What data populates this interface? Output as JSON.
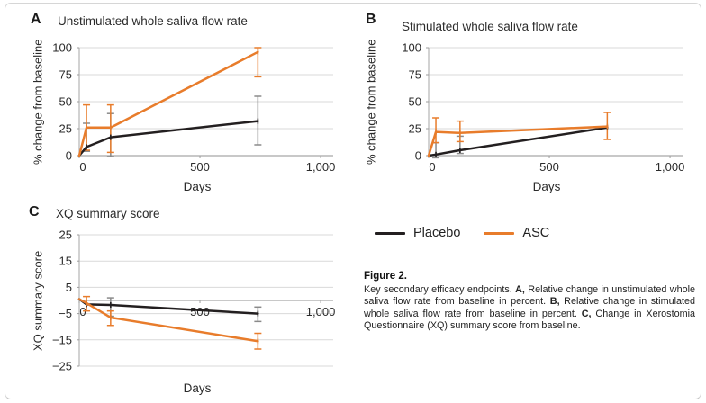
{
  "figure": {
    "legend": {
      "items": [
        {
          "label": "Placebo",
          "color": "#231f20"
        },
        {
          "label": "ASC",
          "color": "#e87c2b"
        }
      ]
    },
    "caption": {
      "title": "Figure 2.",
      "segments": [
        {
          "text": "Key secondary efficacy endpoints. ",
          "bold": false
        },
        {
          "text": "A,",
          "bold": true
        },
        {
          "text": " Relative change in unstimulated whole saliva flow rate from baseline in percent. ",
          "bold": false
        },
        {
          "text": "B,",
          "bold": true
        },
        {
          "text": " Relative change in stimulated whole saliva flow rate from baseline in percent. ",
          "bold": false
        },
        {
          "text": "C,",
          "bold": true
        },
        {
          "text": " Change in Xerostomia Questionnaire (XQ) summary score from baseline.",
          "bold": false
        }
      ]
    }
  },
  "panels": [
    {
      "letter": "A",
      "title": "Unstimulated whole saliva flow rate"
    },
    {
      "letter": "B",
      "title": "Stimulated whole saliva flow rate"
    },
    {
      "letter": "C",
      "title": "XQ summary score"
    }
  ],
  "colors": {
    "placebo": "#231f20",
    "asc": "#e87c2b",
    "placebo_error": "#8a8a8a",
    "gridline": "#d9d9d9",
    "axis": "#b3b3b3",
    "tick_text": "#2b2b2b"
  },
  "chart_data": [
    {
      "type": "line",
      "panel": "A",
      "title": "Unstimulated whole saliva flow rate",
      "xlabel": "Days",
      "ylabel": "% change from baseline",
      "xlim": [
        0,
        1052
      ],
      "ylim": [
        0,
        100
      ],
      "xticks": [
        0,
        500,
        1000
      ],
      "xtick_labels": [
        "0",
        "500",
        "1,000"
      ],
      "yticks": [
        0,
        25,
        50,
        75,
        100
      ],
      "ytick_labels": [
        "0",
        "25",
        "50",
        "75",
        "100"
      ],
      "grid": true,
      "series": [
        {
          "name": "Placebo",
          "color": "#231f20",
          "error_color": "#8a8a8a",
          "points": [
            {
              "x": 0,
              "y": 0
            },
            {
              "x": 30,
              "y": 8,
              "lo": 4,
              "hi": 30
            },
            {
              "x": 130,
              "y": 17,
              "lo": -1,
              "hi": 39
            },
            {
              "x": 740,
              "y": 32,
              "lo": 10,
              "hi": 55
            }
          ]
        },
        {
          "name": "ASC",
          "color": "#e87c2b",
          "error_color": "#e87c2b",
          "points": [
            {
              "x": 0,
              "y": 0
            },
            {
              "x": 30,
              "y": 26,
              "lo": 5,
              "hi": 47
            },
            {
              "x": 130,
              "y": 26,
              "lo": 3,
              "hi": 47
            },
            {
              "x": 740,
              "y": 96,
              "lo": 73,
              "hi": 100
            }
          ]
        }
      ]
    },
    {
      "type": "line",
      "panel": "B",
      "title": "Stimulated whole saliva flow rate",
      "xlabel": "Days",
      "ylabel": "% change from baseline",
      "xlim": [
        0,
        1052
      ],
      "ylim": [
        0,
        100
      ],
      "xticks": [
        0,
        500,
        1000
      ],
      "xtick_labels": [
        "0",
        "500",
        "1,000"
      ],
      "yticks": [
        0,
        25,
        50,
        75,
        100
      ],
      "ytick_labels": [
        "0",
        "25",
        "50",
        "75",
        "100"
      ],
      "grid": true,
      "series": [
        {
          "name": "Placebo",
          "color": "#231f20",
          "error_color": "#8a8a8a",
          "points": [
            {
              "x": 0,
              "y": 0
            },
            {
              "x": 30,
              "y": 1,
              "lo": -2,
              "hi": 12
            },
            {
              "x": 130,
              "y": 5,
              "lo": 2,
              "hi": 18
            },
            {
              "x": 740,
              "y": 26
            }
          ]
        },
        {
          "name": "ASC",
          "color": "#e87c2b",
          "error_color": "#e87c2b",
          "points": [
            {
              "x": 0,
              "y": 0
            },
            {
              "x": 30,
              "y": 22,
              "lo": 12,
              "hi": 35
            },
            {
              "x": 130,
              "y": 21,
              "lo": 13,
              "hi": 32
            },
            {
              "x": 740,
              "y": 27,
              "lo": 15,
              "hi": 40
            }
          ]
        }
      ]
    },
    {
      "type": "line",
      "panel": "C",
      "title": "XQ summary score",
      "xlabel": "Days",
      "ylabel": "XQ summary score",
      "xlim": [
        0,
        1052
      ],
      "ylim": [
        -25,
        25
      ],
      "xticks": [
        0,
        500,
        1000
      ],
      "xtick_labels": [
        "0",
        "500",
        "1,000"
      ],
      "yticks": [
        -25,
        -15,
        -5,
        5,
        15,
        25
      ],
      "ytick_labels": [
        "−25",
        "−15",
        "−5",
        "5",
        "15",
        "25"
      ],
      "grid": true,
      "series": [
        {
          "name": "Placebo",
          "color": "#231f20",
          "error_color": "#8a8a8a",
          "points": [
            {
              "x": 0,
              "y": 0.5
            },
            {
              "x": 30,
              "y": -1.5
            },
            {
              "x": 130,
              "y": -1.7,
              "lo": -6,
              "hi": 1
            },
            {
              "x": 740,
              "y": -5,
              "lo": -8,
              "hi": -2.5
            }
          ]
        },
        {
          "name": "ASC",
          "color": "#e87c2b",
          "error_color": "#e87c2b",
          "points": [
            {
              "x": 0,
              "y": 0.5
            },
            {
              "x": 30,
              "y": -1,
              "lo": -4,
              "hi": 1.5
            },
            {
              "x": 130,
              "y": -6.5,
              "lo": -9.5,
              "hi": -4
            },
            {
              "x": 740,
              "y": -15.5,
              "lo": -18.5,
              "hi": -12.5
            }
          ]
        }
      ]
    }
  ]
}
